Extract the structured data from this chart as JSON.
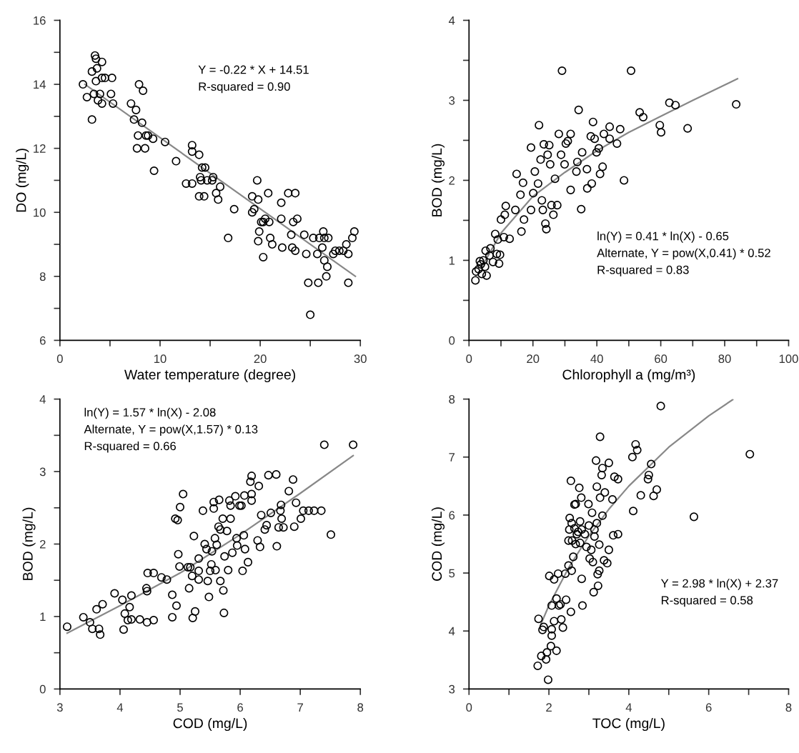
{
  "chart_data": [
    {
      "type": "scatter",
      "xlabel": "Water temperature (degree)",
      "ylabel": "DO (mg/L)",
      "xlim": [
        0,
        30
      ],
      "ylim": [
        6,
        16
      ],
      "xticks": [
        0,
        {
          "value": 5,
          "label": null
        },
        10,
        {
          "value": 15,
          "label": null
        },
        20,
        {
          "value": 25,
          "label": null
        },
        30
      ],
      "yticks": [
        6,
        {
          "value": 7,
          "label": null
        },
        8,
        {
          "value": 9,
          "label": null
        },
        10,
        {
          "value": 11,
          "label": null
        },
        12,
        {
          "value": 13,
          "label": null
        },
        14,
        {
          "value": 15,
          "label": null
        },
        16
      ],
      "annotations": [
        "Y = -0.22 * X + 14.51",
        "R-squared = 0.90"
      ],
      "grid": false,
      "legend": false,
      "series": [
        {
          "color": "#000000",
          "marker": "circle",
          "x": [
            2.3,
            2.7,
            3.2,
            3.2,
            3.4,
            3.5,
            3.6,
            3.7,
            3.6,
            3.8,
            4.0,
            4.2,
            4.2,
            4.5,
            4.2,
            5.2,
            5.1,
            5.3,
            7.1,
            7.6,
            7.4,
            7.9,
            8.3,
            8.2,
            7.8,
            7.7,
            8.5,
            8.6,
            8.8,
            9.3,
            9.4,
            10.5,
            11.6,
            13.2,
            13.2,
            13.9,
            12.6,
            13.2,
            13.9,
            14.0,
            14.1,
            14.2,
            14.4,
            14.5,
            14.7,
            15.2,
            15.3,
            15.6,
            15.8,
            16.0,
            16.8,
            17.4,
            19.2,
            19.2,
            19.4,
            19.7,
            19.8,
            19.8,
            19.9,
            20.1,
            20.3,
            20.3,
            20.5,
            20.8,
            20.9,
            21.0,
            21.2,
            22.1,
            22.1,
            22.2,
            22.8,
            23.5,
            23.1,
            23.3,
            23.7,
            23.2,
            23.5,
            24.4,
            24.6,
            24.8,
            25.0,
            25.3,
            25.7,
            25.8,
            25.9,
            26.2,
            26.3,
            26.4,
            26.4,
            26.6,
            26.7,
            26.8,
            27.3,
            27.5,
            27.9,
            28.3,
            28.6,
            28.8,
            28.8,
            29.2,
            29.4
          ],
          "values": [
            14.0,
            13.6,
            14.4,
            12.9,
            13.7,
            14.9,
            14.8,
            14.5,
            14.1,
            13.5,
            13.7,
            14.2,
            14.7,
            14.2,
            13.4,
            14.2,
            13.7,
            13.4,
            13.4,
            13.2,
            12.9,
            14.0,
            13.8,
            12.8,
            12.4,
            12.0,
            12.0,
            12.4,
            12.4,
            12.3,
            11.3,
            12.2,
            11.6,
            12.1,
            11.9,
            11.8,
            10.9,
            10.9,
            10.5,
            11.1,
            11.0,
            11.4,
            10.5,
            11.4,
            11.0,
            11.0,
            11.1,
            10.6,
            10.4,
            10.8,
            9.2,
            10.1,
            10.5,
            10.0,
            10.1,
            11.0,
            10.4,
            9.1,
            9.4,
            9.7,
            9.7,
            8.6,
            9.8,
            10.6,
            9.7,
            9.2,
            9.0,
            10.3,
            9.8,
            8.9,
            10.6,
            10.6,
            9.3,
            9.7,
            9.8,
            8.9,
            8.8,
            9.3,
            8.7,
            7.8,
            6.8,
            9.2,
            8.7,
            7.8,
            9.2,
            8.9,
            9.4,
            9.2,
            8.5,
            8.0,
            8.3,
            9.2,
            8.7,
            8.8,
            8.8,
            8.8,
            9.0,
            8.7,
            7.8,
            9.2,
            9.4
          ]
        },
        {
          "type": "line",
          "color": "#888888",
          "x": [
            2.5,
            29.5
          ],
          "values": [
            14.0,
            8.0
          ]
        }
      ]
    },
    {
      "type": "scatter",
      "xlabel": "Chlorophyll a (mg/m³)",
      "ylabel": "BOD (mg/L)",
      "xlim": [
        0,
        100
      ],
      "ylim": [
        0,
        4
      ],
      "xticks": [
        0,
        {
          "value": 10,
          "label": null
        },
        20,
        {
          "value": 30,
          "label": null
        },
        40,
        {
          "value": 50,
          "label": null
        },
        60,
        {
          "value": 70,
          "label": null
        },
        80,
        {
          "value": 90,
          "label": null
        },
        100
      ],
      "yticks": [
        0,
        {
          "value": 0.5,
          "label": null
        },
        1,
        {
          "value": 1.5,
          "label": null
        },
        2,
        {
          "value": 2.5,
          "label": null
        },
        3,
        {
          "value": 3.5,
          "label": null
        },
        4
      ],
      "annotations": [
        "ln(Y) = 0.41 * ln(X) - 0.65",
        "Alternate, Y = pow(X,0.41) * 0.52",
        "R-squared = 0.83"
      ],
      "grid": false,
      "legend": false,
      "series": [
        {
          "color": "#000000",
          "marker": "circle",
          "x": [
            2,
            2.2,
            3,
            3.4,
            3.7,
            4,
            4.5,
            5,
            5.5,
            5.2,
            6.4,
            6.7,
            7.5,
            8.2,
            8.7,
            9,
            9.4,
            9.7,
            10,
            10.9,
            11.2,
            11.5,
            12.7,
            14.5,
            14.9,
            16.1,
            16.4,
            16.9,
            17.2,
            19.4,
            19.4,
            20.1,
            20.6,
            21.6,
            21.9,
            22.4,
            22.8,
            23.1,
            23.4,
            23.9,
            24.2,
            24.6,
            25.1,
            25.4,
            25.8,
            26.4,
            26.9,
            27.6,
            28.1,
            28.8,
            29.1,
            29.9,
            30.3,
            30.9,
            31.8,
            31.8,
            33.6,
            33.9,
            34.3,
            35.1,
            35.4,
            36.9,
            37.0,
            38.1,
            38.4,
            38.8,
            39.3,
            39.9,
            40.6,
            41,
            41.8,
            42.2,
            44,
            44,
            46.3,
            47.3,
            48.5,
            50.7,
            53.4,
            54.5,
            59.7,
            60.1,
            62.7,
            64.6,
            68.4,
            83.6
          ],
          "values": [
            0.75,
            0.86,
            0.89,
            0.99,
            0.95,
            0.83,
            1.0,
            0.92,
            0.81,
            1.12,
            1.06,
            1.15,
            0.98,
            1.33,
            1.08,
            1.26,
            0.96,
            1.07,
            1.51,
            1.29,
            1.57,
            1.68,
            1.27,
            1.63,
            2.08,
            1.82,
            1.36,
            1.97,
            1.51,
            2.41,
            1.63,
            1.84,
            2.11,
            1.96,
            2.69,
            2.26,
            1.75,
            1.63,
            2.45,
            1.46,
            1.39,
            2.32,
            2.44,
            2.2,
            1.69,
            1.57,
            2.02,
            1.69,
            2.58,
            2.32,
            3.37,
            2.2,
            2.46,
            2.49,
            2.58,
            1.88,
            2.11,
            2.23,
            2.88,
            1.64,
            2.35,
            2.14,
            1.9,
            2.55,
            1.96,
            2.73,
            2.52,
            2.35,
            2.4,
            2.08,
            2.17,
            2.58,
            2.67,
            2.52,
            2.46,
            2.64,
            2.0,
            3.37,
            2.85,
            2.79,
            2.69,
            2.6,
            2.97,
            2.94,
            2.65,
            2.95
          ]
        },
        {
          "type": "line",
          "color": "#888888",
          "x": [
            4,
            10,
            20,
            30,
            40,
            50,
            60,
            70,
            84
          ],
          "values": [
            0.92,
            1.34,
            1.8,
            2.1,
            2.37,
            2.6,
            2.8,
            3.0,
            3.27
          ]
        }
      ]
    },
    {
      "type": "scatter",
      "xlabel": "COD (mg/L)",
      "ylabel": "BOD (mg/L)",
      "xlim": [
        3,
        8
      ],
      "ylim": [
        0,
        4
      ],
      "xticks": [
        3,
        4,
        5,
        6,
        7,
        8
      ],
      "yticks": [
        0,
        {
          "value": 0.5,
          "label": null
        },
        1,
        {
          "value": 1.5,
          "label": null
        },
        2,
        {
          "value": 2.5,
          "label": null
        },
        3,
        {
          "value": 3.5,
          "label": null
        },
        4
      ],
      "annotations": [
        "ln(Y) = 1.57 * ln(X) - 2.08",
        "Alternate, Y = pow(X,1.57) * 0.13",
        "R-squared = 0.66"
      ],
      "grid": false,
      "legend": false,
      "series": [
        {
          "color": "#000000",
          "marker": "circle",
          "x": [
            3.12,
            3.39,
            3.5,
            3.54,
            3.61,
            3.65,
            3.67,
            3.71,
            3.91,
            4.04,
            4.06,
            4.08,
            4.13,
            4.16,
            4.19,
            4.19,
            4.33,
            4.44,
            4.45,
            4.46,
            4.45,
            4.56,
            4.56,
            4.69,
            4.78,
            4.87,
            4.87,
            4.92,
            4.94,
            4.96,
            4.97,
            4.99,
            5.0,
            5.05,
            5.13,
            5.15,
            5.17,
            5.2,
            5.21,
            5.23,
            5.25,
            5.31,
            5.31,
            5.31,
            5.38,
            5.41,
            5.44,
            5.46,
            5.48,
            5.5,
            5.52,
            5.53,
            5.56,
            5.56,
            5.58,
            5.59,
            5.61,
            5.64,
            5.65,
            5.67,
            5.67,
            5.71,
            5.72,
            5.73,
            5.74,
            5.78,
            5.8,
            5.82,
            5.84,
            5.84,
            5.87,
            5.92,
            5.94,
            5.95,
            5.99,
            6.02,
            6.04,
            6.06,
            6.07,
            6.08,
            6.13,
            6.17,
            6.19,
            6.19,
            6.19,
            6.29,
            6.31,
            6.33,
            6.35,
            6.41,
            6.44,
            6.47,
            6.51,
            6.6,
            6.61,
            6.64,
            6.67,
            6.68,
            6.69,
            6.72,
            6.81,
            6.88,
            6.9,
            6.93,
            7.01,
            7.05,
            7.14,
            7.23,
            7.35,
            7.4,
            7.51,
            7.88
          ],
          "values": [
            0.86,
            0.99,
            0.92,
            0.83,
            1.1,
            0.83,
            0.75,
            1.17,
            1.32,
            1.23,
            0.82,
            1.04,
            0.95,
            1.13,
            1.29,
            0.96,
            0.96,
            1.39,
            1.35,
            1.6,
            0.92,
            1.6,
            0.95,
            1.54,
            1.51,
            1.3,
            0.99,
            2.35,
            1.15,
            2.33,
            1.86,
            1.69,
            2.51,
            2.69,
            1.68,
            1.39,
            1.68,
            1.56,
            0.98,
            2.11,
            1.07,
            1.8,
            1.63,
            1.51,
            2.46,
            2.0,
            1.93,
            1.49,
            1.27,
            1.63,
            1.72,
            1.9,
            2.58,
            2.49,
            2.08,
            1.64,
            1.99,
            2.24,
            2.61,
            2.2,
            1.49,
            2.35,
            1.36,
            1.05,
            1.83,
            2.18,
            1.64,
            2.6,
            2.53,
            2.35,
            1.88,
            2.66,
            2.08,
            1.98,
            2.53,
            2.53,
            1.63,
            2.12,
            2.67,
            1.93,
            1.75,
            2.86,
            2.94,
            2.69,
            2.6,
            2.05,
            2.8,
            1.96,
            2.4,
            2.2,
            2.26,
            2.95,
            2.43,
            2.96,
            1.97,
            2.23,
            2.46,
            2.54,
            2.35,
            2.23,
            2.73,
            2.89,
            2.24,
            2.57,
            2.35,
            2.46,
            2.46,
            2.46,
            2.46,
            3.37,
            2.13,
            3.37
          ]
        },
        {
          "type": "line",
          "color": "#888888",
          "x": [
            3.12,
            4,
            5,
            6,
            7,
            7.88
          ],
          "values": [
            0.77,
            1.15,
            1.6,
            2.13,
            2.7,
            3.22
          ]
        }
      ]
    },
    {
      "type": "scatter",
      "xlabel": "TOC (mg/L)",
      "ylabel": "COD (mg/L)",
      "xlim": [
        0,
        8
      ],
      "ylim": [
        3,
        8
      ],
      "xticks": [
        0,
        {
          "value": 1,
          "label": null
        },
        2,
        {
          "value": 3,
          "label": null
        },
        4,
        {
          "value": 5,
          "label": null
        },
        6,
        {
          "value": 7,
          "label": null
        },
        8
      ],
      "yticks": [
        3,
        4,
        5,
        6,
        7,
        8
      ],
      "annotations": [
        "Y = 2.98 * ln(X) + 2.37",
        "R-squared = 0.58"
      ],
      "grid": false,
      "legend": false,
      "series": [
        {
          "color": "#000000",
          "marker": "circle",
          "x": [
            1.72,
            1.74,
            1.84,
            1.81,
            1.87,
            1.93,
            1.95,
            1.98,
            2.01,
            2.05,
            2.07,
            2.07,
            2.07,
            2.13,
            2.13,
            2.19,
            2.19,
            2.23,
            2.25,
            2.29,
            2.31,
            2.35,
            2.41,
            2.43,
            2.49,
            2.49,
            2.51,
            2.52,
            2.55,
            2.55,
            2.57,
            2.57,
            2.58,
            2.61,
            2.64,
            2.64,
            2.67,
            2.67,
            2.7,
            2.73,
            2.76,
            2.78,
            2.78,
            2.81,
            2.82,
            2.82,
            2.84,
            2.9,
            2.94,
            2.99,
            3.0,
            3.02,
            3.06,
            3.08,
            3.1,
            3.12,
            3.14,
            3.14,
            3.18,
            3.2,
            3.2,
            3.22,
            3.23,
            3.26,
            3.26,
            3.28,
            3.28,
            3.32,
            3.34,
            3.34,
            3.38,
            3.4,
            3.46,
            3.5,
            3.5,
            3.59,
            3.61,
            3.64,
            3.73,
            3.73,
            4.09,
            4.11,
            4.17,
            4.21,
            4.3,
            4.48,
            4.5,
            4.56,
            4.62,
            4.7,
            4.8,
            5.63,
            7.03
          ],
          "values": [
            3.4,
            4.21,
            4.02,
            3.57,
            4.07,
            3.51,
            3.63,
            3.16,
            4.95,
            3.74,
            3.92,
            4.03,
            4.44,
            4.89,
            4.17,
            4.56,
            3.66,
            4.99,
            4.44,
            4.46,
            4.2,
            4.06,
            4.99,
            4.54,
            5.13,
            5.56,
            5.75,
            5.95,
            6.59,
            4.33,
            5.86,
            5.04,
            5.56,
            5.28,
            5.77,
            6.18,
            5.5,
            6.19,
            5.67,
            5.71,
            6.47,
            5.89,
            5.52,
            6.3,
            4.9,
            5.75,
            4.44,
            5.67,
            5.45,
            6.19,
            5.82,
            5.25,
            5.4,
            6.04,
            5.19,
            4.67,
            5.75,
            5.63,
            6.94,
            6.49,
            5.86,
            4.98,
            4.78,
            5.49,
            5.04,
            7.35,
            6.3,
            6.69,
            5.99,
            6.81,
            5.22,
            6.39,
            5.17,
            6.9,
            5.4,
            6.27,
            5.65,
            6.66,
            6.62,
            5.67,
            7.0,
            6.07,
            7.22,
            7.12,
            6.34,
            6.62,
            6.69,
            6.88,
            6.33,
            6.44,
            7.88,
            5.97,
            7.05
          ]
        },
        {
          "type": "line",
          "color": "#888888",
          "x": [
            1.8,
            2,
            2.5,
            3,
            3.5,
            4,
            5,
            6,
            6.6
          ],
          "values": [
            4.12,
            4.44,
            5.1,
            5.64,
            6.1,
            6.5,
            7.17,
            7.71,
            7.99
          ]
        }
      ]
    }
  ]
}
